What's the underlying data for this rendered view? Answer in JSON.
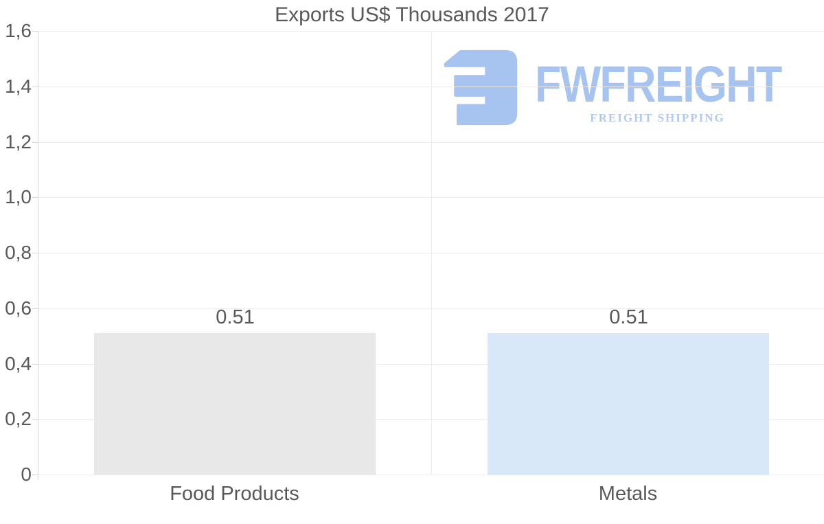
{
  "style": {
    "background": "#ffffff",
    "text_color": "#595959",
    "gridline_color": "#ececec",
    "axis_color": "#d6d6d6"
  },
  "logo": {
    "brand": "FWFREIGHT",
    "tagline": "FREIGHT SHIPPING",
    "icon": "fwfreight-mark-icon",
    "color_primary": "#a7c4f0",
    "color_tagline": "#b2c8ef"
  },
  "chart_data": {
    "type": "bar",
    "title": "Exports US$ Thousands 2017",
    "categories": [
      "Food Products",
      "Metals"
    ],
    "values": [
      0.51,
      0.51
    ],
    "value_labels": [
      "0.51",
      "0.51"
    ],
    "bar_colors": [
      "#e8e8e8",
      "#d9e8f8"
    ],
    "xlabel": "",
    "ylabel": "",
    "ylim": [
      0,
      1.6
    ],
    "ytick_values": [
      0,
      0.2,
      0.4,
      0.6,
      0.8,
      1.0,
      1.2,
      1.4,
      1.6
    ],
    "ytick_labels": [
      "0",
      "0,2",
      "0,4",
      "0,6",
      "0,8",
      "1,0",
      "1,2",
      "1,4",
      "1,6"
    ],
    "grid": true,
    "legend": false
  }
}
